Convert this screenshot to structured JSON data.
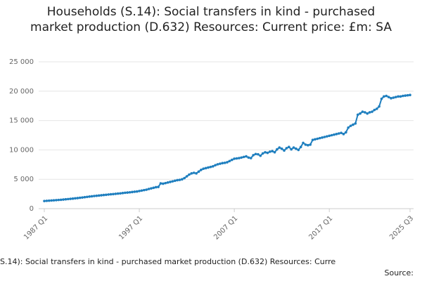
{
  "chart_data": {
    "type": "line",
    "title": "Households (S.14): Social transfers in kind - purchased market production (D.632) Resources: Current price: £m: SA",
    "footer": "S.14): Social transfers in kind - purchased market production (D.632) Resources: Curre",
    "source": "Source:",
    "categories": [
      "1987 Q1",
      null,
      null,
      null,
      null,
      null,
      null,
      null,
      null,
      null,
      null,
      null,
      null,
      null,
      null,
      null,
      null,
      null,
      null,
      null,
      null,
      null,
      null,
      null,
      null,
      null,
      null,
      null,
      null,
      null,
      null,
      null,
      null,
      null,
      null,
      null,
      null,
      null,
      null,
      null,
      "1997 Q1",
      null,
      null,
      null,
      null,
      null,
      null,
      null,
      null,
      null,
      null,
      null,
      null,
      null,
      null,
      null,
      null,
      null,
      null,
      null,
      null,
      null,
      null,
      null,
      null,
      null,
      null,
      null,
      null,
      null,
      null,
      null,
      null,
      null,
      null,
      null,
      null,
      null,
      null,
      null,
      "2007 Q1",
      null,
      null,
      null,
      null,
      null,
      null,
      null,
      null,
      null,
      null,
      null,
      null,
      null,
      null,
      null,
      null,
      null,
      null,
      null,
      null,
      null,
      null,
      null,
      null,
      null,
      null,
      null,
      null,
      null,
      null,
      null,
      null,
      null,
      null,
      null,
      null,
      null,
      null,
      null,
      "2017 Q1",
      null,
      null,
      null,
      null,
      null,
      null,
      null,
      null,
      null,
      null,
      null,
      null,
      null,
      null,
      null,
      null,
      null,
      null,
      null,
      null,
      null,
      null,
      null,
      null,
      null,
      null,
      null,
      null,
      null,
      null,
      null,
      null,
      null,
      "2025 Q3"
    ],
    "series": [
      {
        "color": "#1f7fbf",
        "values": [
          1300,
          1330,
          1360,
          1390,
          1420,
          1450,
          1480,
          1510,
          1550,
          1590,
          1630,
          1670,
          1710,
          1760,
          1800,
          1850,
          1900,
          1950,
          2000,
          2050,
          2100,
          2150,
          2190,
          2230,
          2280,
          2320,
          2360,
          2400,
          2440,
          2480,
          2520,
          2560,
          2600,
          2650,
          2700,
          2740,
          2780,
          2830,
          2880,
          2920,
          3000,
          3080,
          3150,
          3230,
          3350,
          3450,
          3550,
          3650,
          3700,
          4300,
          4250,
          4350,
          4450,
          4550,
          4650,
          4750,
          4850,
          4900,
          5000,
          5200,
          5500,
          5800,
          6000,
          6100,
          6000,
          6300,
          6600,
          6800,
          6900,
          7000,
          7100,
          7200,
          7400,
          7550,
          7650,
          7750,
          7800,
          7900,
          8100,
          8300,
          8500,
          8550,
          8600,
          8700,
          8800,
          8900,
          8700,
          8600,
          9100,
          9300,
          9250,
          9000,
          9400,
          9600,
          9500,
          9700,
          9800,
          9600,
          10100,
          10400,
          10200,
          9900,
          10300,
          10500,
          10100,
          10400,
          10200,
          10000,
          10500,
          11200,
          10900,
          10800,
          10900,
          11700,
          11800,
          11900,
          12000,
          12100,
          12200,
          12300,
          12400,
          12500,
          12600,
          12700,
          12800,
          12900,
          12700,
          13000,
          13800,
          14100,
          14300,
          14500,
          16000,
          16200,
          16500,
          16400,
          16200,
          16400,
          16500,
          16800,
          17000,
          17400,
          18700,
          19100,
          19200,
          19000,
          18800,
          18900,
          19000,
          19100,
          19100,
          19200,
          19250,
          19300,
          19350
        ]
      }
    ],
    "ylim": [
      0,
      25000
    ],
    "yticks": [
      0,
      {
        "value": 5000,
        "label": "5 000"
      },
      {
        "value": 10000,
        "label": "10 000"
      },
      {
        "value": 15000,
        "label": "15 000"
      },
      {
        "value": 20000,
        "label": "20 000"
      },
      {
        "value": 25000,
        "label": "25 000"
      }
    ],
    "grid": true
  }
}
